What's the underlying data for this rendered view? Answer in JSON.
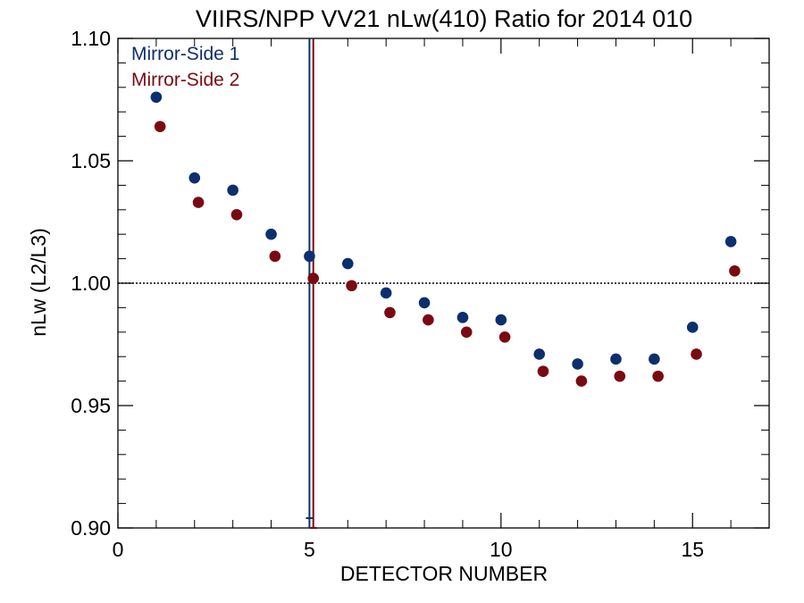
{
  "chart_data": {
    "type": "scatter",
    "title": "VIIRS/NPP VV21 nLw(410) Ratio for 2014 010",
    "xlabel": "DETECTOR NUMBER",
    "ylabel": "nLw (L2/L3)",
    "xlim": [
      0,
      17
    ],
    "ylim": [
      0.9,
      1.1
    ],
    "xticks": [
      0,
      5,
      10,
      15
    ],
    "xtick_labels": [
      "0",
      "5",
      "10",
      "15"
    ],
    "yticks": [
      0.9,
      0.95,
      1.0,
      1.05,
      1.1
    ],
    "ytick_labels": [
      "0.90",
      "0.95",
      "1.00",
      "1.05",
      "1.10"
    ],
    "reference_line_y": 1.0,
    "legend_position": "top-left",
    "series": [
      {
        "name": "Mirror-Side 1",
        "color": "#0d2f6e",
        "x": [
          1,
          2,
          3,
          4,
          5,
          6,
          7,
          8,
          9,
          10,
          11,
          12,
          13,
          14,
          15,
          16
        ],
        "values": [
          1.076,
          1.043,
          1.038,
          1.02,
          1.011,
          1.008,
          0.996,
          0.992,
          0.986,
          0.985,
          0.971,
          0.967,
          0.969,
          0.969,
          0.982,
          1.017
        ],
        "vertical_marker_x": 5.0
      },
      {
        "name": "Mirror-Side 2",
        "color": "#7a0a12",
        "x": [
          1.1,
          2.1,
          3.1,
          4.1,
          5.1,
          6.1,
          7.1,
          8.1,
          9.1,
          10.1,
          11.1,
          12.1,
          13.1,
          14.1,
          15.1,
          16.1
        ],
        "values": [
          1.064,
          1.033,
          1.028,
          1.011,
          1.002,
          0.999,
          0.988,
          0.985,
          0.98,
          0.978,
          0.964,
          0.96,
          0.962,
          0.962,
          0.971,
          1.005
        ],
        "vertical_marker_x": 5.1
      }
    ]
  }
}
